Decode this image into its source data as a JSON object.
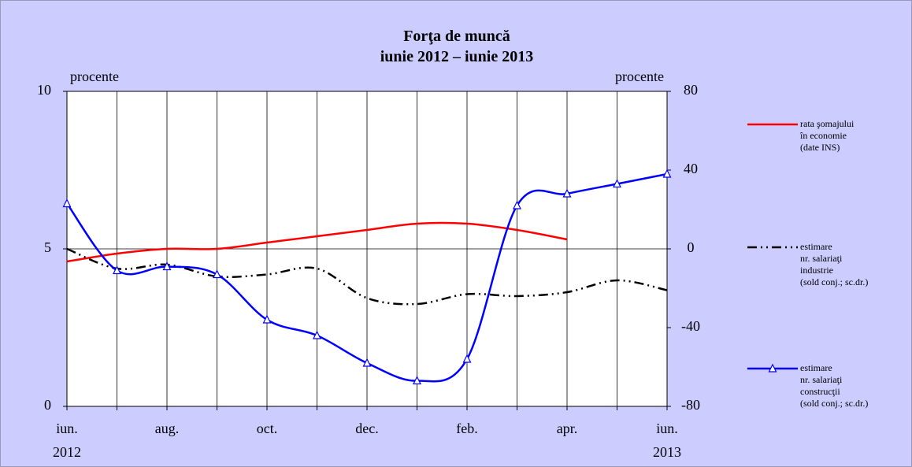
{
  "chart_data": {
    "type": "line",
    "title": "Forţa de muncă",
    "subtitle": "iunie 2012 – iunie 2013",
    "y_label": "procente",
    "y2_label": "procente",
    "categories": [
      "iun.",
      null,
      "aug.",
      null,
      "oct.",
      null,
      "dec.",
      null,
      "feb.",
      null,
      "apr.",
      null,
      "iun."
    ],
    "category_years": [
      "2012",
      null,
      null,
      null,
      null,
      null,
      null,
      null,
      null,
      null,
      null,
      null,
      "2013"
    ],
    "ylim": [
      0,
      10
    ],
    "yticks": [
      0,
      5,
      10
    ],
    "y2lim": [
      -80,
      80
    ],
    "y2ticks": [
      -80,
      -40,
      0,
      40,
      80
    ],
    "grid": "x",
    "legend": "right",
    "series": [
      {
        "name": "rata şomajului\nîn economie\n(date INS)",
        "color": "#ff0000",
        "style": "solid",
        "values": [
          4.6,
          4.85,
          5.0,
          5.0,
          5.2,
          5.4,
          5.6,
          5.8,
          5.8,
          5.6,
          5.3,
          null,
          null
        ]
      },
      {
        "name": "estimare\nnr. salariaţi\nindustrie\n(sold conj.; sc.dr.)",
        "color": "#000000",
        "style": "dashdot",
        "axis": "y2",
        "values": [
          0,
          -10,
          -8,
          -14,
          -13,
          -10,
          -25,
          -28,
          -23,
          -24,
          -22,
          -16,
          -21
        ]
      },
      {
        "name": "estimare\nnr. salariaţi\nconstrucţii\n(sold conj.; sc.dr.)",
        "color": "#0000ff",
        "style": "solid",
        "marker": "triangle",
        "axis": "y2",
        "values": [
          23,
          -11,
          -9,
          -13,
          -36,
          -44,
          -58,
          -67,
          -56,
          22,
          28,
          33,
          38
        ]
      }
    ]
  }
}
